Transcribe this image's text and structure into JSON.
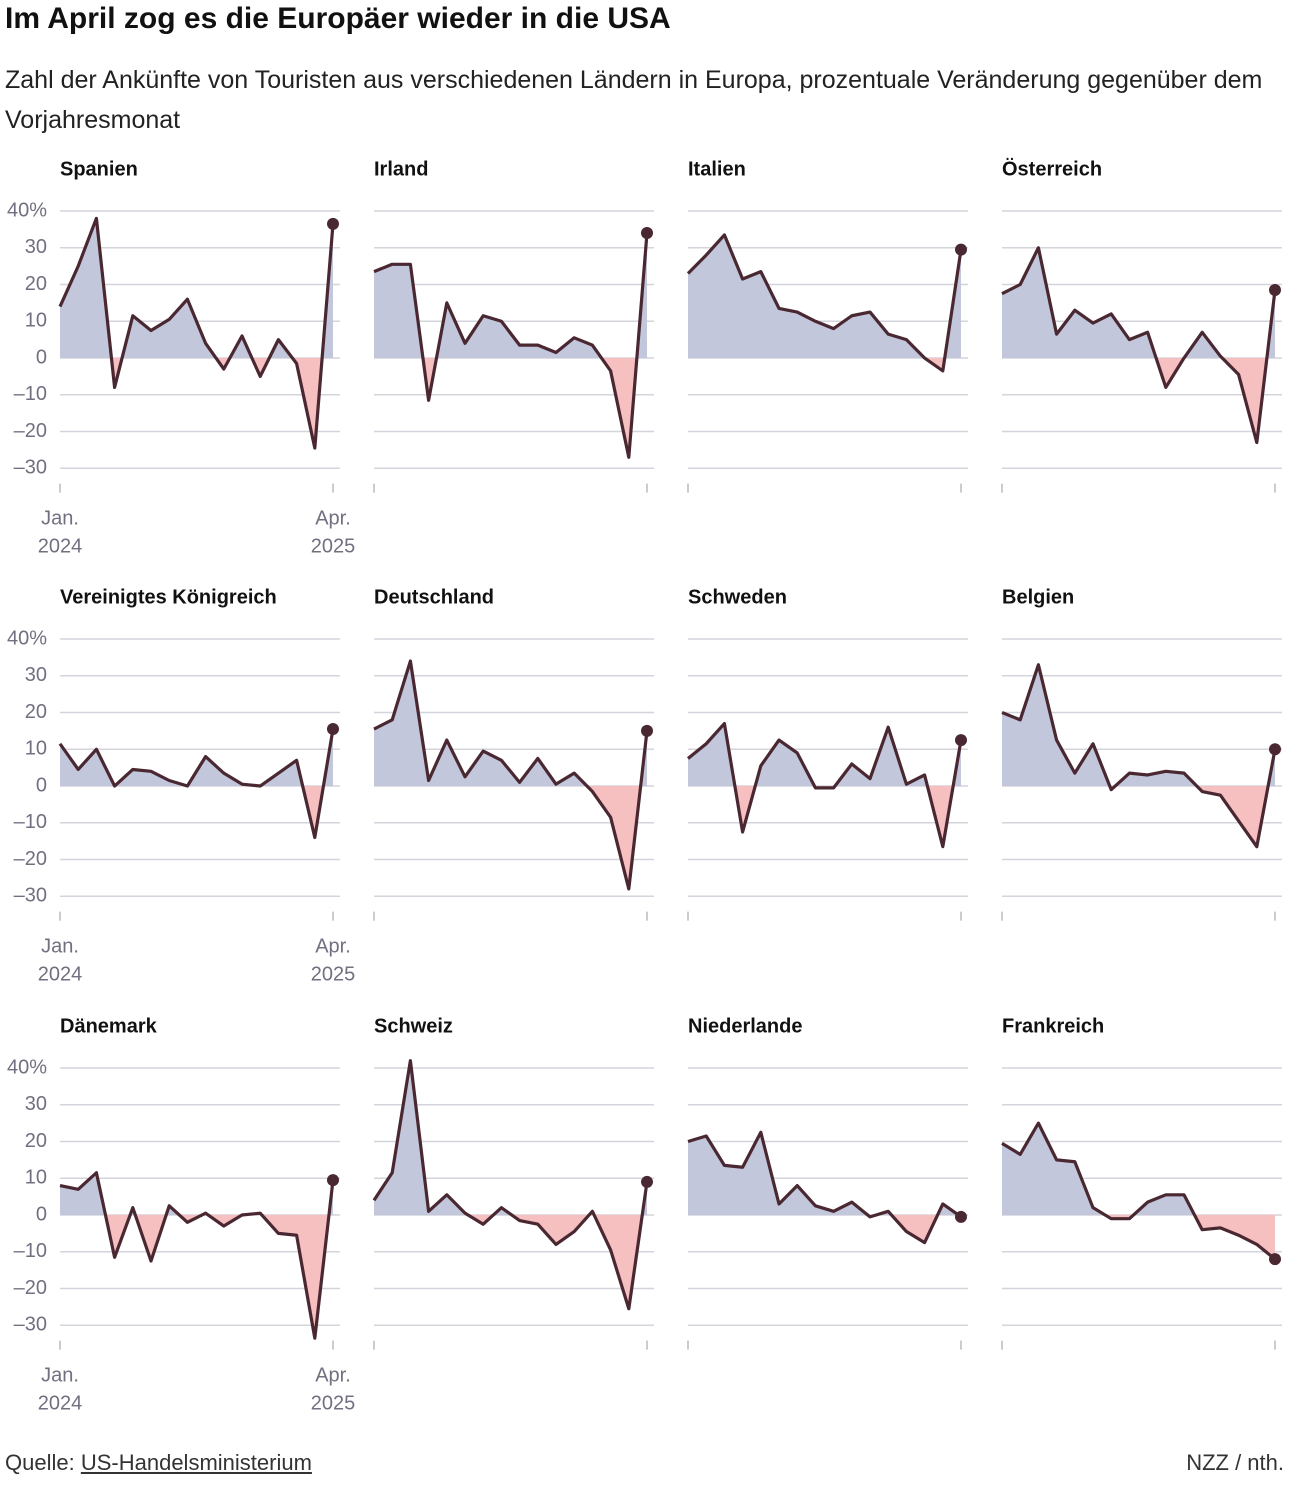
{
  "title": "Im April zog es die Europäer wieder in die USA",
  "subtitle": "Zahl der Ankünfte von Touristen aus verschiedenen Ländern in Europa, prozentuale Veränderung gegenüber dem Vorjahresmonat",
  "source_label": "Quelle:",
  "source": "US-Handelsministerium",
  "credit": "NZZ / nth.",
  "chart_data": {
    "type": "area",
    "categories": [
      "Jan. 2024",
      null,
      null,
      null,
      null,
      null,
      null,
      null,
      null,
      null,
      null,
      null,
      null,
      null,
      null,
      "Apr. 2025"
    ],
    "ylim": [
      -35,
      42
    ],
    "yticks": [
      {
        "value": 40,
        "label": "40%"
      },
      30,
      20,
      10,
      0,
      {
        "value": -10,
        "label": "–10"
      },
      {
        "value": -20,
        "label": "–20"
      },
      {
        "value": -30,
        "label": "–30"
      }
    ],
    "grid": true,
    "line_color": "#4a2832",
    "positive_color": "#c3c7dc",
    "negative_color": "#f6bfc0",
    "series": [
      {
        "name": "Spanien",
        "values": [
          14,
          25,
          38,
          -8,
          11.5,
          7.5,
          10.5,
          16,
          4,
          -3,
          6,
          -5,
          5,
          -1.5,
          -24.5,
          36.5
        ]
      },
      {
        "name": "Irland",
        "values": [
          23.5,
          25.5,
          25.5,
          -11.5,
          15,
          4,
          11.5,
          10,
          3.5,
          3.5,
          1.5,
          5.5,
          3.5,
          -3.5,
          -27,
          34
        ]
      },
      {
        "name": "Italien",
        "values": [
          23,
          28,
          33.5,
          21.5,
          23.5,
          13.5,
          12.5,
          10,
          8,
          11.5,
          12.5,
          6.5,
          5,
          0,
          -3.5,
          29.5
        ]
      },
      {
        "name": "Österreich",
        "values": [
          17.5,
          20,
          30,
          6.5,
          13,
          9.5,
          12,
          5,
          7,
          -8,
          0,
          7,
          0.5,
          -4.5,
          -23,
          18.5
        ]
      },
      {
        "name": "Vereinigtes Königreich",
        "values": [
          11.5,
          4.5,
          10,
          0,
          4.5,
          4,
          1.5,
          0,
          8,
          3.5,
          0.5,
          0,
          3.5,
          7,
          -14,
          15.5
        ]
      },
      {
        "name": "Deutschland",
        "values": [
          15.5,
          18,
          34,
          1.5,
          12.5,
          2.5,
          9.5,
          7,
          1,
          7.5,
          0.5,
          3.5,
          -1.5,
          -8.5,
          -28,
          15
        ]
      },
      {
        "name": "Schweden",
        "values": [
          7.5,
          11.5,
          17,
          -12.5,
          5.5,
          12.5,
          9,
          -0.5,
          -0.5,
          6,
          2,
          16,
          0.5,
          3,
          -16.5,
          12.5
        ]
      },
      {
        "name": "Belgien",
        "values": [
          20,
          18,
          33,
          12.5,
          3.5,
          11.5,
          -1,
          3.5,
          3,
          4,
          3.5,
          -1.5,
          -2.5,
          -9.5,
          -16.5,
          10
        ]
      },
      {
        "name": "Dänemark",
        "values": [
          8,
          7,
          11.5,
          -11.5,
          2,
          -12.5,
          2.5,
          -2,
          0.5,
          -3,
          0,
          0.5,
          -5,
          -5.5,
          -33.5,
          9.5
        ]
      },
      {
        "name": "Schweiz",
        "values": [
          4,
          11.5,
          42,
          1,
          5.5,
          0.5,
          -2.5,
          2,
          -1.5,
          -2.5,
          -8,
          -4.5,
          1,
          -9.5,
          -25.5,
          9
        ]
      },
      {
        "name": "Niederlande",
        "values": [
          20,
          21.5,
          13.5,
          13,
          22.5,
          3,
          8,
          2.5,
          1,
          3.5,
          -0.5,
          1,
          -4.5,
          -7.5,
          3,
          -0.5
        ]
      },
      {
        "name": "Frankreich",
        "values": [
          19.5,
          16.5,
          25,
          15,
          14.5,
          2,
          -1,
          -1,
          3.5,
          5.5,
          5.5,
          -4,
          -3.5,
          -5.5,
          -8,
          -12
        ]
      }
    ]
  }
}
